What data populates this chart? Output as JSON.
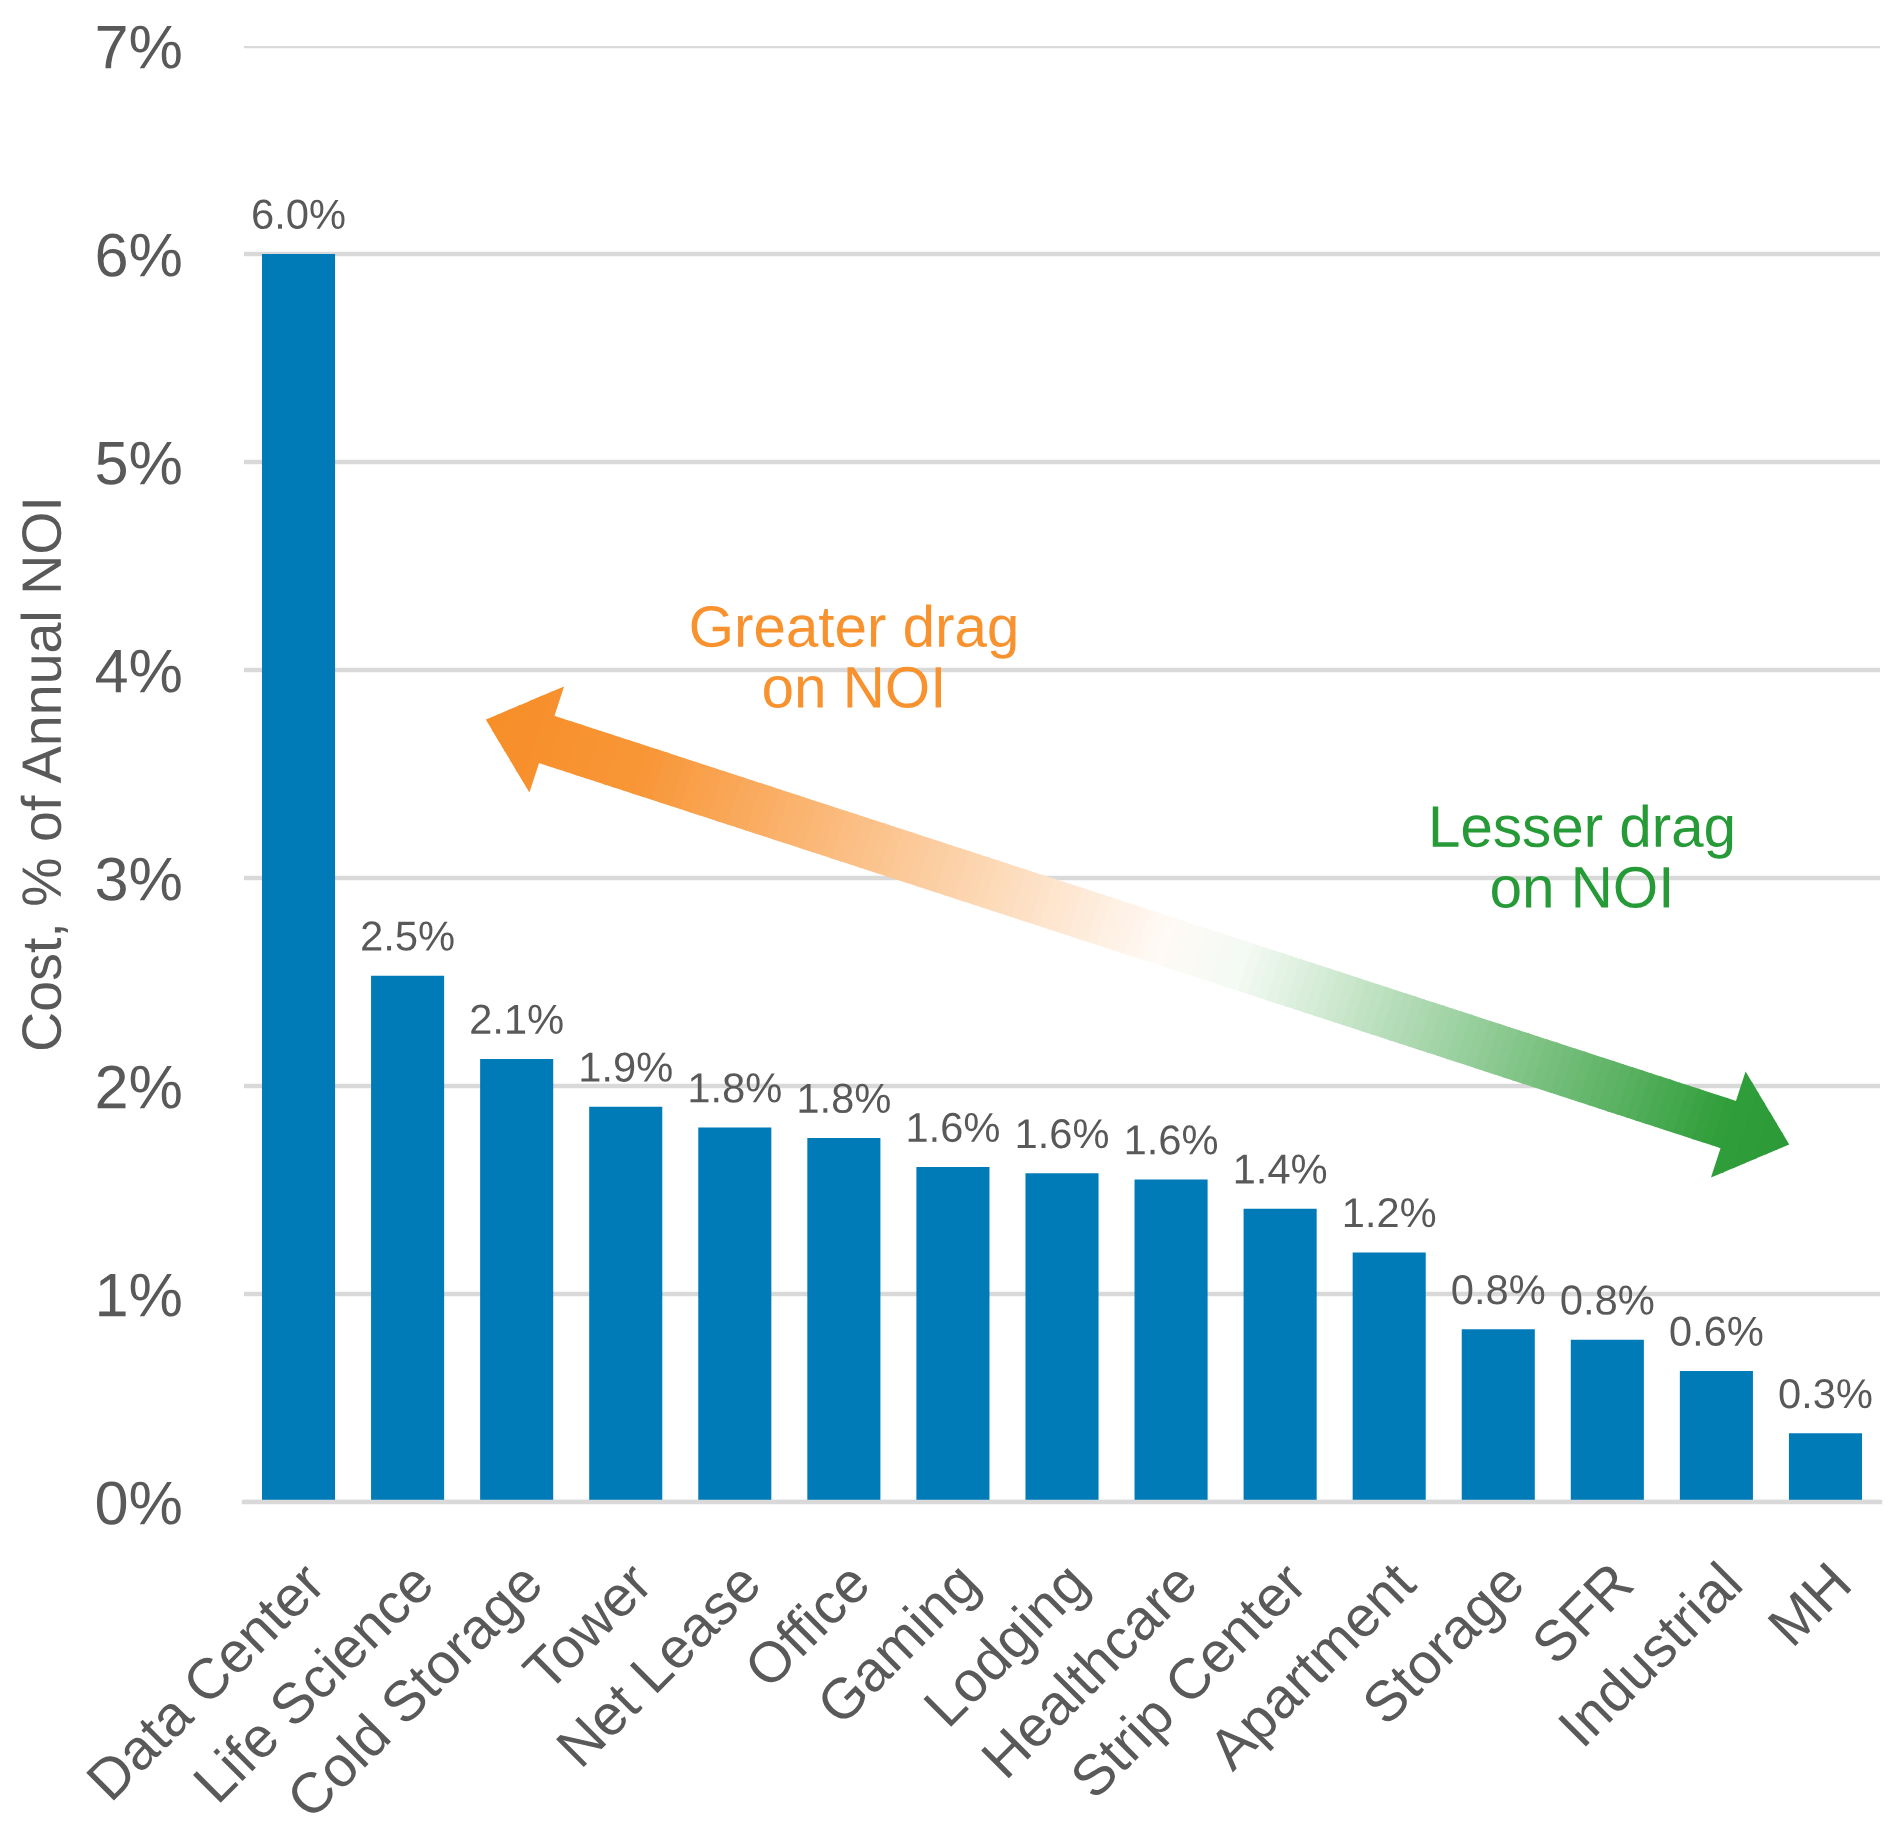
{
  "chart_data": {
    "type": "bar",
    "ylabel": "Cost, % of Annual NOI",
    "categories": [
      "Data Center",
      "Life Science",
      "Cold Storage",
      "Tower",
      "Net Lease",
      "Office",
      "Gaming",
      "Lodging",
      "Healthcare",
      "Strip Center",
      "Apartment",
      "Storage",
      "SFR",
      "Industrial",
      "MH"
    ],
    "values": [
      6.0,
      2.53,
      2.13,
      1.9,
      1.8,
      1.75,
      1.61,
      1.58,
      1.55,
      1.41,
      1.2,
      0.83,
      0.78,
      0.63,
      0.33
    ],
    "value_labels": [
      "6.0%",
      "2.5%",
      "2.1%",
      "1.9%",
      "1.8%",
      "1.8%",
      "1.6%",
      "1.6%",
      "1.6%",
      "1.4%",
      "1.2%",
      "0.8%",
      "0.8%",
      "0.6%",
      "0.3%"
    ],
    "color": "#007bb8",
    "ylim": [
      0,
      7
    ],
    "yticks": [
      {
        "value": 0,
        "label": "0%"
      },
      {
        "value": 1,
        "label": "1%"
      },
      {
        "value": 2,
        "label": "2%"
      },
      {
        "value": 3,
        "label": "3%"
      },
      {
        "value": 4,
        "label": "4%"
      },
      {
        "value": 5,
        "label": "5%"
      },
      {
        "value": 6,
        "label": "6%"
      },
      {
        "value": 7,
        "label": "7%"
      }
    ],
    "grid": "y",
    "annotations": [
      "Greater drag\non NOI",
      "Lesser drag\non NOI"
    ]
  }
}
